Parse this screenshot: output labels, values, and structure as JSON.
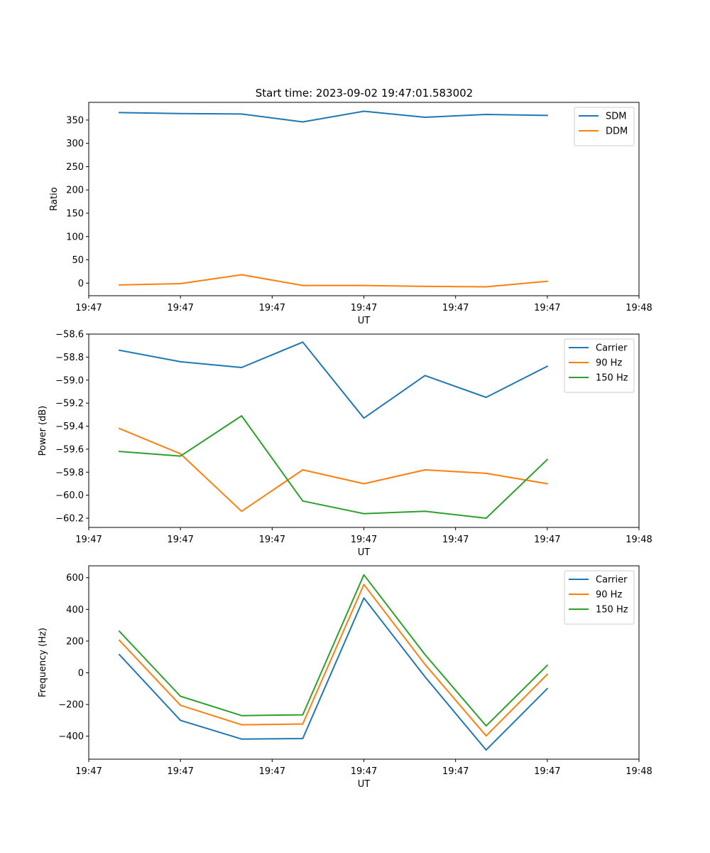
{
  "title": "Start time: 2023-09-02 19:47:01.583002",
  "colors": {
    "blue": "#1f77b4",
    "orange": "#ff7f0e",
    "green": "#2ca02c"
  },
  "chart_data": [
    {
      "type": "line",
      "title": "Start time: 2023-09-02 19:47:01.583002",
      "xlabel": "UT",
      "ylabel": "Ratio",
      "x": [
        1,
        2,
        3,
        4,
        5,
        6,
        7,
        8
      ],
      "xlim": [
        0.5,
        9.5
      ],
      "xticks": [
        0.5,
        2,
        3.5,
        5,
        6.5,
        8,
        9.5
      ],
      "xtick_labels": [
        "19:47",
        "19:47",
        "19:47",
        "19:47",
        "19:47",
        "19:47",
        "19:48"
      ],
      "ylim": [
        -27,
        388
      ],
      "yticks": [
        0,
        50,
        100,
        150,
        200,
        250,
        300,
        350
      ],
      "ytick_labels": [
        "0",
        "50",
        "100",
        "150",
        "200",
        "250",
        "300",
        "350"
      ],
      "legend_position": "top-right",
      "series": [
        {
          "name": "SDM",
          "color": "#1f77b4",
          "values": [
            366,
            364,
            363,
            346,
            369,
            356,
            362,
            360
          ]
        },
        {
          "name": "DDM",
          "color": "#ff7f0e",
          "values": [
            -4,
            -1,
            18,
            -5,
            -5,
            -7,
            -8,
            4
          ]
        }
      ]
    },
    {
      "type": "line",
      "xlabel": "UT",
      "ylabel": "Power (dB)",
      "x": [
        1,
        2,
        3,
        4,
        5,
        6,
        7,
        8
      ],
      "xlim": [
        0.5,
        9.5
      ],
      "xticks": [
        0.5,
        2,
        3.5,
        5,
        6.5,
        8,
        9.5
      ],
      "xtick_labels": [
        "19:47",
        "19:47",
        "19:47",
        "19:47",
        "19:47",
        "19:47",
        "19:48"
      ],
      "ylim": [
        -60.28,
        -58.6
      ],
      "yticks": [
        -58.6,
        -58.8,
        -59.0,
        -59.2,
        -59.4,
        -59.6,
        -59.8,
        -60.0,
        -60.2
      ],
      "ytick_labels": [
        "−58.6",
        "−58.8",
        "−59.0",
        "−59.2",
        "−59.4",
        "−59.6",
        "−59.8",
        "−60.0",
        "−60.2"
      ],
      "legend_position": "top-right",
      "series": [
        {
          "name": "Carrier",
          "color": "#1f77b4",
          "values": [
            -58.74,
            -58.84,
            -58.89,
            -58.67,
            -59.33,
            -58.96,
            -59.15,
            -58.88
          ]
        },
        {
          "name": "90 Hz",
          "color": "#ff7f0e",
          "values": [
            -59.42,
            -59.64,
            -60.14,
            -59.78,
            -59.9,
            -59.78,
            -59.81,
            -59.9
          ]
        },
        {
          "name": "150 Hz",
          "color": "#2ca02c",
          "values": [
            -59.62,
            -59.66,
            -59.31,
            -60.05,
            -60.16,
            -60.14,
            -60.2,
            -59.69
          ]
        }
      ]
    },
    {
      "type": "line",
      "xlabel": "UT",
      "ylabel": "Frequency (Hz)",
      "x": [
        1,
        2,
        3,
        4,
        5,
        6,
        7,
        8
      ],
      "xlim": [
        0.5,
        9.5
      ],
      "xticks": [
        0.5,
        2,
        3.5,
        5,
        6.5,
        8,
        9.5
      ],
      "xtick_labels": [
        "19:47",
        "19:47",
        "19:47",
        "19:47",
        "19:47",
        "19:47",
        "19:48"
      ],
      "ylim": [
        -545,
        675
      ],
      "yticks": [
        600,
        400,
        200,
        0,
        -200,
        -400
      ],
      "ytick_labels": [
        "600",
        "400",
        "200",
        "0",
        "−200",
        "−400"
      ],
      "legend_position": "top-right",
      "series": [
        {
          "name": "Carrier",
          "color": "#1f77b4",
          "values": [
            115,
            -300,
            -418,
            -415,
            472,
            -25,
            -487,
            -100
          ]
        },
        {
          "name": "90 Hz",
          "color": "#ff7f0e",
          "values": [
            205,
            -205,
            -328,
            -323,
            557,
            53,
            -398,
            -10
          ]
        },
        {
          "name": "150 Hz",
          "color": "#2ca02c",
          "values": [
            262,
            -148,
            -270,
            -265,
            618,
            115,
            -335,
            47
          ]
        }
      ]
    }
  ]
}
